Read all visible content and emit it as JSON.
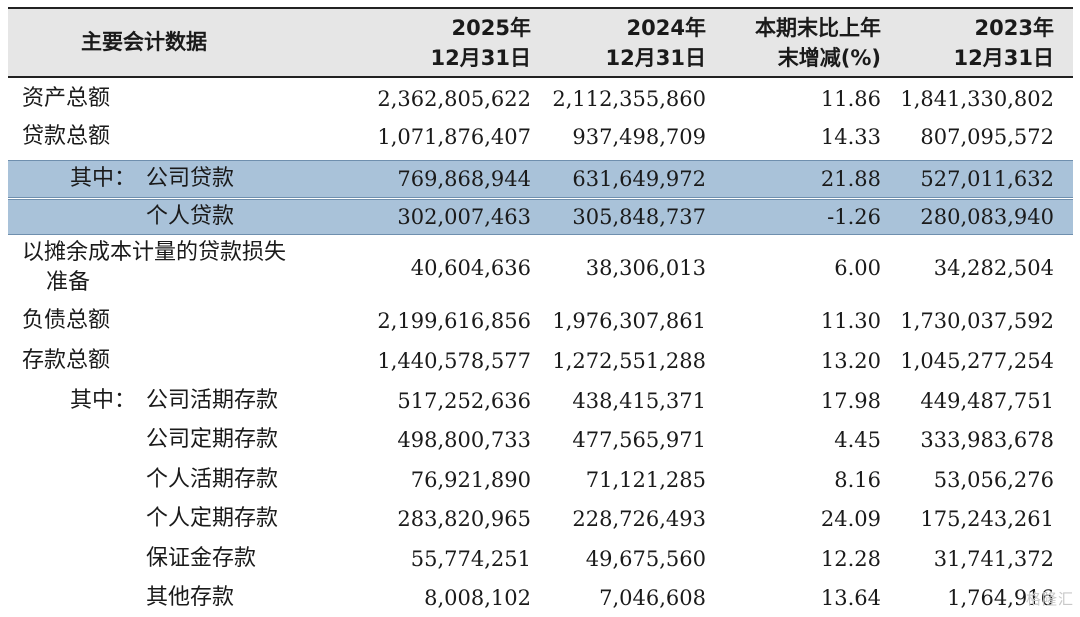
{
  "table": {
    "header": {
      "item": "主要会计数据",
      "c1": [
        "2025年",
        "12月31日"
      ],
      "c2": [
        "2024年",
        "12月31日"
      ],
      "c3": [
        "本期末比上年",
        "末增减(%)"
      ],
      "c4": [
        "2023年",
        "12月31日"
      ]
    },
    "rows": [
      {
        "label": "资产总额",
        "v1": "2,362,805,622",
        "v2": "2,112,355,860",
        "v3": "11.86",
        "v4": "1,841,330,802"
      },
      {
        "label": "贷款总额",
        "v1": "1,071,876,407",
        "v2": "937,498,709",
        "v3": "14.33",
        "v4": "807,095,572"
      },
      {
        "prefix": "其中：",
        "label": "公司贷款",
        "v1": "769,868,944",
        "v2": "631,649,972",
        "v3": "21.88",
        "v4": "527,011,632"
      },
      {
        "label": "个人贷款",
        "v1": "302,007,463",
        "v2": "305,848,737",
        "v3": "-1.26",
        "v4": "280,083,940"
      },
      {
        "label_line1": "以摊余成本计量的贷款损失",
        "label_line2": "准备",
        "v1": "40,604,636",
        "v2": "38,306,013",
        "v3": "6.00",
        "v4": "34,282,504"
      },
      {
        "label": "负债总额",
        "v1": "2,199,616,856",
        "v2": "1,976,307,861",
        "v3": "11.30",
        "v4": "1,730,037,592"
      },
      {
        "label": "存款总额",
        "v1": "1,440,578,577",
        "v2": "1,272,551,288",
        "v3": "13.20",
        "v4": "1,045,277,254"
      },
      {
        "prefix": "其中：",
        "label": "公司活期存款",
        "v1": "517,252,636",
        "v2": "438,415,371",
        "v3": "17.98",
        "v4": "449,487,751"
      },
      {
        "label": "公司定期存款",
        "v1": "498,800,733",
        "v2": "477,565,971",
        "v3": "4.45",
        "v4": "333,983,678"
      },
      {
        "label": "个人活期存款",
        "v1": "76,921,890",
        "v2": "71,121,285",
        "v3": "8.16",
        "v4": "53,056,276"
      },
      {
        "label": "个人定期存款",
        "v1": "283,820,965",
        "v2": "228,726,493",
        "v3": "24.09",
        "v4": "175,243,261"
      },
      {
        "label": "保证金存款",
        "v1": "55,774,251",
        "v2": "49,675,560",
        "v3": "12.28",
        "v4": "31,741,372"
      },
      {
        "label": "其他存款",
        "v1": "8,008,102",
        "v2": "7,046,608",
        "v3": "13.64",
        "v4": "1,764,916"
      }
    ]
  },
  "watermark": "格隆汇"
}
